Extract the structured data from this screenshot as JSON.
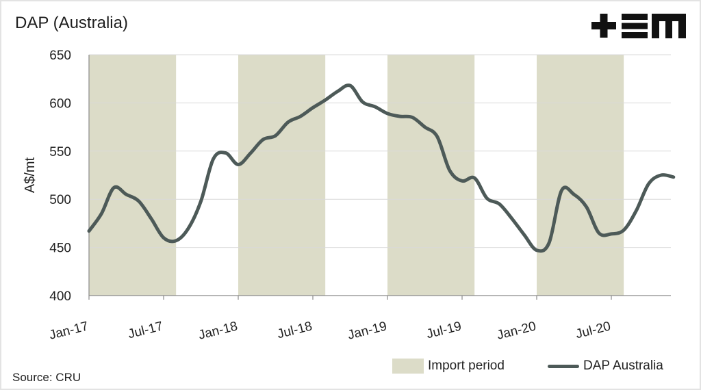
{
  "header": {
    "title": "DAP (Australia)"
  },
  "logo": {
    "name": "tem-logo",
    "text": "+EM"
  },
  "footer": {
    "source": "Source: CRU"
  },
  "colors": {
    "import_band": "#dcdcc8",
    "line": "#4d5a58",
    "grid": "#d9d9d9",
    "axis": "#8a8a8a"
  },
  "chart_data": {
    "type": "line",
    "title": "DAP (Australia)",
    "xlabel": "",
    "ylabel": "A$/mt",
    "ylim": [
      400,
      650
    ],
    "yticks": [
      400,
      450,
      500,
      550,
      600,
      650
    ],
    "xticks": [
      "Jan-17",
      "Jul-17",
      "Jan-18",
      "Jul-18",
      "Jan-19",
      "Jul-19",
      "Jan-20",
      "Jul-20"
    ],
    "x_range": [
      "2017-01",
      "2020-12"
    ],
    "grid": true,
    "legend_position": "bottom-right",
    "legend": [
      "Import period",
      "DAP Australia"
    ],
    "import_periods": [
      [
        "2017-01",
        "2017-08"
      ],
      [
        "2018-01",
        "2018-08"
      ],
      [
        "2019-01",
        "2019-08"
      ],
      [
        "2020-01",
        "2020-08"
      ]
    ],
    "series": [
      {
        "name": "DAP Australia",
        "x": [
          "2017-01",
          "2017-02",
          "2017-03",
          "2017-04",
          "2017-05",
          "2017-06",
          "2017-07",
          "2017-08",
          "2017-09",
          "2017-10",
          "2017-11",
          "2017-12",
          "2018-01",
          "2018-02",
          "2018-03",
          "2018-04",
          "2018-05",
          "2018-06",
          "2018-07",
          "2018-08",
          "2018-09",
          "2018-10",
          "2018-11",
          "2018-12",
          "2019-01",
          "2019-02",
          "2019-03",
          "2019-04",
          "2019-05",
          "2019-06",
          "2019-07",
          "2019-08",
          "2019-09",
          "2019-10",
          "2019-11",
          "2019-12",
          "2020-01",
          "2020-02",
          "2020-03",
          "2020-04",
          "2020-05",
          "2020-06",
          "2020-07",
          "2020-08",
          "2020-09",
          "2020-10",
          "2020-11",
          "2020-12"
        ],
        "values": [
          467,
          485,
          512,
          505,
          498,
          480,
          460,
          457,
          470,
          498,
          542,
          548,
          536,
          548,
          562,
          566,
          580,
          586,
          595,
          603,
          612,
          618,
          601,
          596,
          589,
          586,
          585,
          575,
          565,
          530,
          519,
          522,
          501,
          495,
          480,
          463,
          447,
          455,
          509,
          505,
          492,
          465,
          464,
          468,
          488,
          516,
          525,
          523
        ]
      }
    ]
  }
}
